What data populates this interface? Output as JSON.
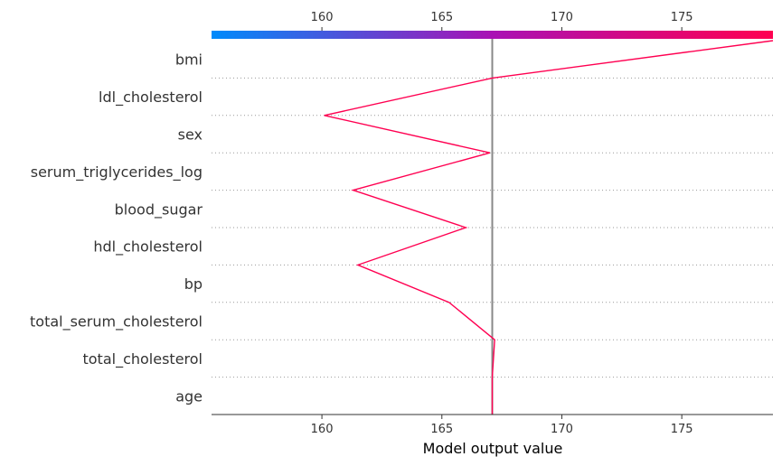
{
  "chart_data": {
    "type": "line",
    "chart_style": "shap-decision-plot",
    "xlabel": "Model output value",
    "xlim": [
      155.4,
      178.8
    ],
    "ticks": [
      160,
      165,
      170,
      175
    ],
    "tick_labels": [
      "160",
      "165",
      "170",
      "175"
    ],
    "base_value": 167.1,
    "features": [
      "bmi",
      "ldl_cholesterol",
      "sex",
      "serum_triglycerides_log",
      "blood_sugar",
      "hdl_cholesterol",
      "bp",
      "total_serum_cholesterol",
      "total_cholesterol",
      "age"
    ],
    "series": [
      {
        "values": [
          178.8,
          167.1,
          160.1,
          167.0,
          161.3,
          166.0,
          161.5,
          165.3,
          167.2,
          167.1,
          167.1
        ]
      }
    ],
    "colorbar": {
      "from": "#008bfb",
      "to": "#ff0051"
    },
    "line_color": "#ff0051",
    "base_line_color": "#888888",
    "grid": "dotted horizontal"
  }
}
